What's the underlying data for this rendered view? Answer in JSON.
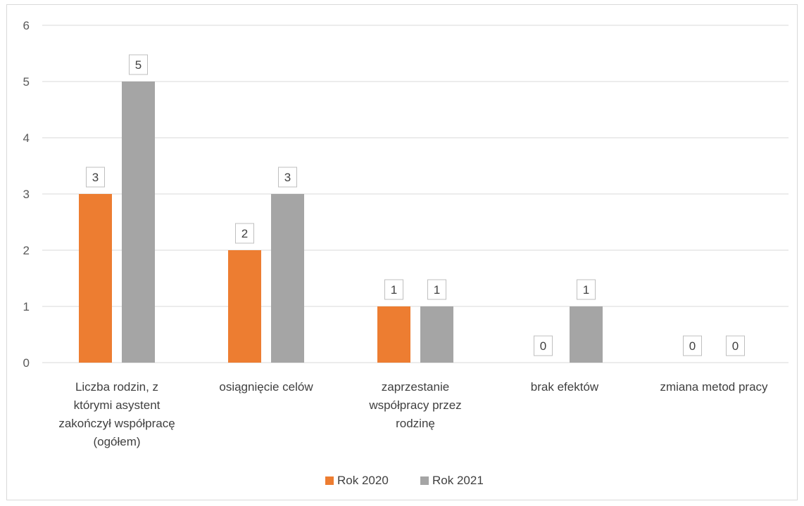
{
  "chart_data": {
    "type": "bar",
    "categories": [
      "Liczba rodzin, z którymi asystent zakończył współpracę (ogółem)",
      "osiągnięcie celów",
      "zaprzestanie współpracy przez rodzinę",
      "brak efektów",
      "zmiana metod pracy"
    ],
    "category_lines": [
      [
        "Liczba rodzin, z",
        "którymi asystent",
        "zakończył współpracę",
        "(ogółem)"
      ],
      [
        "osiągnięcie celów"
      ],
      [
        "zaprzestanie",
        "współpracy przez",
        "rodzinę"
      ],
      [
        "brak efektów"
      ],
      [
        "zmiana metod pracy"
      ]
    ],
    "series": [
      {
        "name": "Rok 2020",
        "values": [
          3,
          2,
          1,
          0,
          0
        ],
        "color": "#ED7D31"
      },
      {
        "name": "Rok 2021",
        "values": [
          5,
          3,
          1,
          1,
          0
        ],
        "color": "#A5A5A5"
      }
    ],
    "yticks": [
      "0",
      "1",
      "2",
      "3",
      "4",
      "5",
      "6"
    ],
    "ylim": [
      0,
      6
    ],
    "grid": true,
    "legend": "bottom-center",
    "data_labels": true
  }
}
